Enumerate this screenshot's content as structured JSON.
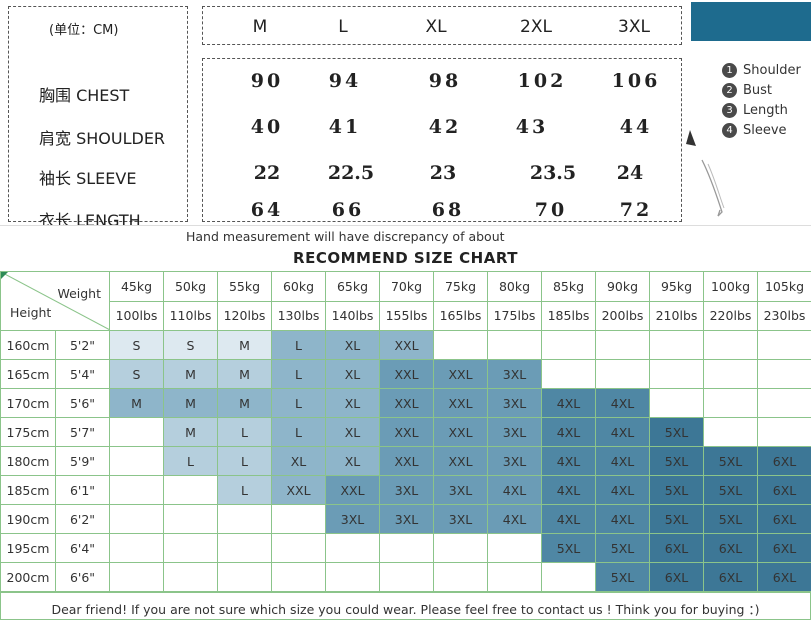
{
  "measure": {
    "unit_label": "(单位：CM)",
    "sizes": [
      "M",
      "L",
      "XL",
      "2XL",
      "3XL"
    ],
    "rows": [
      {
        "label": "胸围  CHEST",
        "values": [
          "90",
          "94",
          "98",
          "102",
          "106"
        ]
      },
      {
        "label": "肩宽  SHOULDER",
        "values": [
          "40",
          "41",
          "42",
          "43",
          "44"
        ]
      },
      {
        "label": "袖长  SLEEVE",
        "values": [
          "22",
          "22.5",
          "23",
          "23.5",
          "24"
        ]
      },
      {
        "label": "衣长  LENGTH",
        "values": [
          "64",
          "66",
          "68",
          "70",
          "72"
        ]
      }
    ]
  },
  "legend": [
    {
      "num": "1",
      "label": "Shoulder"
    },
    {
      "num": "2",
      "label": "Bust"
    },
    {
      "num": "3",
      "label": "Length"
    },
    {
      "num": "4",
      "label": "Sleeve"
    }
  ],
  "colors": {
    "brand": "#1e6b8e",
    "grid": "#8bc48a"
  },
  "note": "Hand measurement will have discrepancy of about",
  "chart": {
    "title": "RECOMMEND SIZE CHART",
    "weight_label": "Weight",
    "height_label": "Height",
    "weights_kg": [
      "45kg",
      "50kg",
      "55kg",
      "60kg",
      "65kg",
      "70kg",
      "75kg",
      "80kg",
      "85kg",
      "90kg",
      "95kg",
      "100kg",
      "105kg"
    ],
    "weights_lbs": [
      "100lbs",
      "110lbs",
      "120lbs",
      "130lbs",
      "140lbs",
      "155lbs",
      "165lbs",
      "175lbs",
      "185lbs",
      "200lbs",
      "210lbs",
      "220lbs",
      "230lbs"
    ],
    "rows": [
      {
        "cm": "160cm",
        "ft": "5'2\"",
        "cells": [
          "S",
          "S",
          "M",
          "L",
          "XL",
          "XXL",
          "",
          "",
          "",
          "",
          "",
          "",
          ""
        ]
      },
      {
        "cm": "165cm",
        "ft": "5'4\"",
        "cells": [
          "S",
          "M",
          "M",
          "L",
          "XL",
          "XXL",
          "XXL",
          "3XL",
          "",
          "",
          "",
          "",
          ""
        ]
      },
      {
        "cm": "170cm",
        "ft": "5'6\"",
        "cells": [
          "M",
          "M",
          "M",
          "L",
          "XL",
          "XXL",
          "XXL",
          "3XL",
          "4XL",
          "4XL",
          "",
          "",
          ""
        ]
      },
      {
        "cm": "175cm",
        "ft": "5'7\"",
        "cells": [
          "",
          "M",
          "L",
          "L",
          "XL",
          "XXL",
          "XXL",
          "3XL",
          "4XL",
          "4XL",
          "5XL",
          "",
          ""
        ]
      },
      {
        "cm": "180cm",
        "ft": "5'9\"",
        "cells": [
          "",
          "L",
          "L",
          "XL",
          "XL",
          "XXL",
          "XXL",
          "3XL",
          "4XL",
          "4XL",
          "5XL",
          "5XL",
          "6XL"
        ]
      },
      {
        "cm": "185cm",
        "ft": "6'1\"",
        "cells": [
          "",
          "",
          "L",
          "XXL",
          "XXL",
          "3XL",
          "3XL",
          "4XL",
          "4XL",
          "4XL",
          "5XL",
          "5XL",
          "6XL"
        ]
      },
      {
        "cm": "190cm",
        "ft": "6'2\"",
        "cells": [
          "",
          "",
          "",
          "",
          "3XL",
          "3XL",
          "3XL",
          "4XL",
          "4XL",
          "4XL",
          "5XL",
          "5XL",
          "6XL"
        ]
      },
      {
        "cm": "195cm",
        "ft": "6'4\"",
        "cells": [
          "",
          "",
          "",
          "",
          "",
          "",
          "",
          "",
          "5XL",
          "5XL",
          "6XL",
          "6XL",
          "6XL"
        ]
      },
      {
        "cm": "200cm",
        "ft": "6'6\"",
        "cells": [
          "",
          "",
          "",
          "",
          "",
          "",
          "",
          "",
          "",
          "5XL",
          "6XL",
          "6XL",
          "6XL"
        ]
      }
    ]
  },
  "footer": "Dear friend! If you are not sure which size you could wear. Please feel free to contact us ! Think you for buying ：)"
}
